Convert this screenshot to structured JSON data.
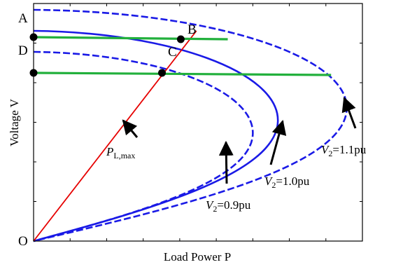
{
  "chart_data": {
    "type": "line",
    "xlabel": "Load Power P",
    "ylabel": "Voltage V",
    "grid": false,
    "legend": "none",
    "origin_label": "O",
    "series": [
      {
        "name": "V2=0.9pu",
        "style": "dashed",
        "color": "#1a1ae6",
        "tip": {
          "p": 0.7,
          "v": 0.51
        },
        "v0": 0.9
      },
      {
        "name": "V2=1.0pu",
        "style": "solid",
        "color": "#1a1ae6",
        "tip": {
          "p": 0.78,
          "v": 0.57
        },
        "v0": 1.0
      },
      {
        "name": "V2=1.1pu",
        "style": "dashed",
        "color": "#1a1ae6",
        "tip": {
          "p": 1.0,
          "v": 0.63
        },
        "v0": 1.1
      }
    ],
    "line_PL_max": {
      "color": "#e60000",
      "from": {
        "p": 0,
        "v": 0
      },
      "to": {
        "p": 0.52,
        "v": 1.0
      }
    },
    "points": [
      {
        "label": "A",
        "p": 0.0,
        "v": 0.97
      },
      {
        "label": "B",
        "p": 0.47,
        "v": 0.96
      },
      {
        "label": "C",
        "p": 0.41,
        "v": 0.8
      },
      {
        "label": "D",
        "p": 0.0,
        "v": 0.8
      }
    ],
    "green_lines": [
      {
        "from": "A",
        "to_p": 0.62,
        "v": 0.97,
        "v_end": 0.96
      },
      {
        "from": "D",
        "to_p": 0.95,
        "v": 0.8,
        "v_end": 0.79
      }
    ],
    "annotations": [
      {
        "main": "P",
        "sub": "L,max",
        "suffix": ""
      },
      {
        "main": "V",
        "sub": "2",
        "suffix": "=0.9pu"
      },
      {
        "main": "V",
        "sub": "2",
        "suffix": "=1.0pu"
      },
      {
        "main": "V",
        "sub": "2",
        "suffix": "=1.1pu"
      }
    ]
  }
}
